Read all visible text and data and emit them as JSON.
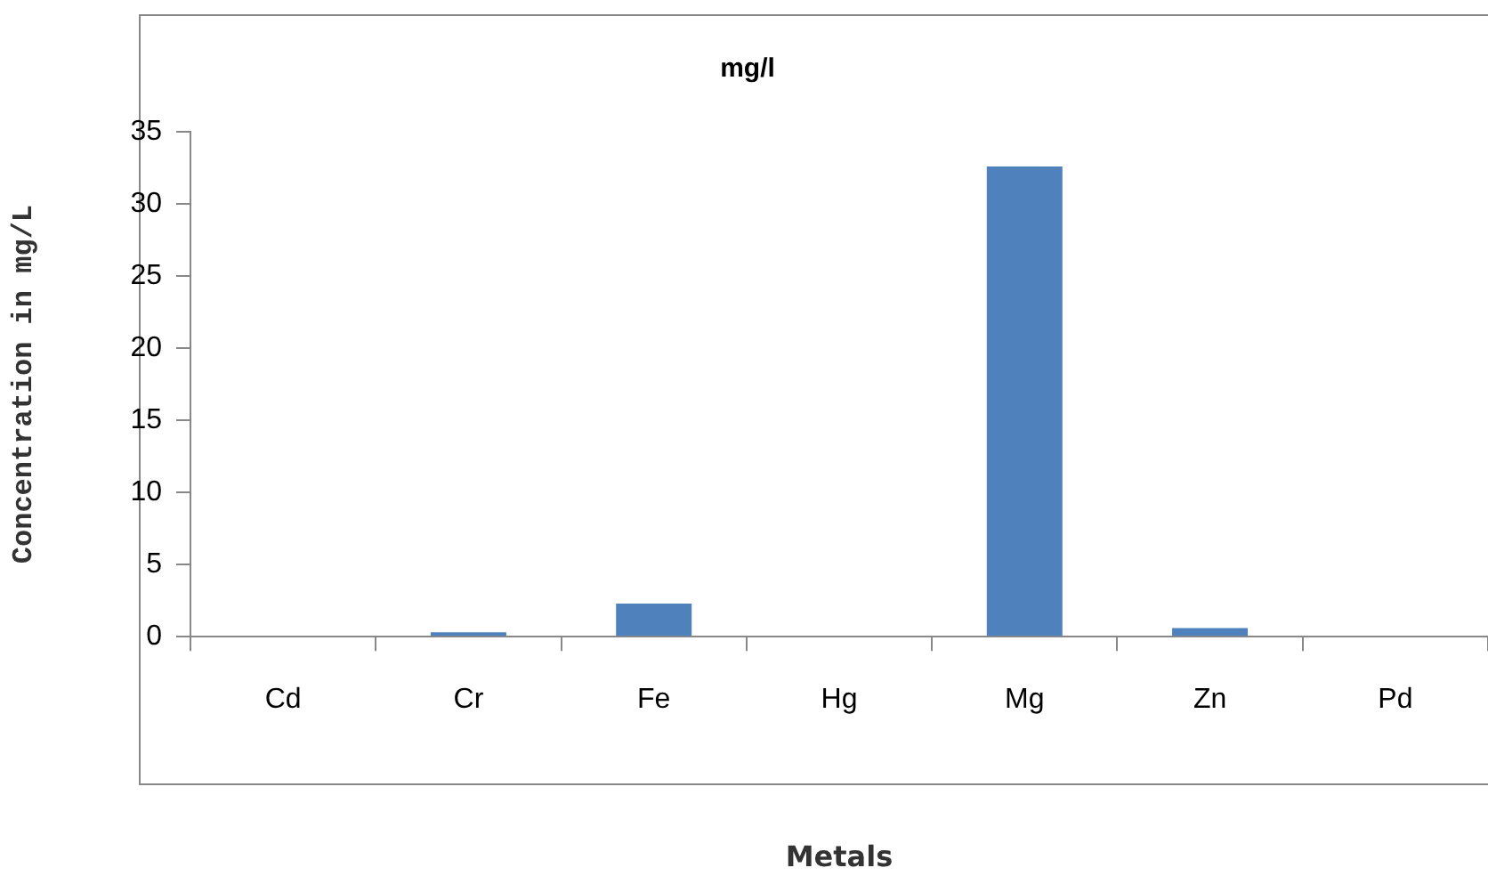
{
  "chart_data": {
    "type": "bar",
    "title": "mg/l",
    "xlabel": "Metals",
    "ylabel": "Concentration in mg/L",
    "categories": [
      "Cd",
      "Cr",
      "Fe",
      "Hg",
      "Mg",
      "Zn",
      "Pd"
    ],
    "values": [
      0,
      0.3,
      2.3,
      0,
      32.6,
      0.6,
      0
    ],
    "color": "#4f81bd",
    "ylim": [
      0,
      35
    ],
    "yticks": [
      0,
      5,
      10,
      15,
      20,
      25,
      30,
      35
    ],
    "grid": false,
    "legend": false
  }
}
